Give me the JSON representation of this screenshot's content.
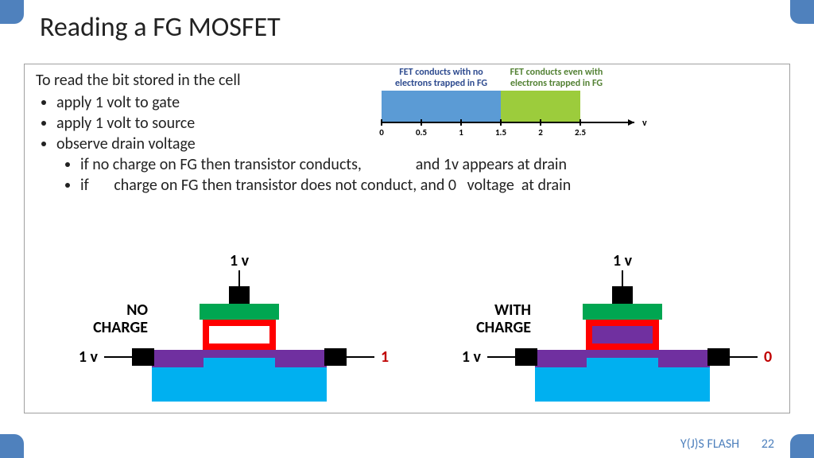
{
  "title": "Reading a FG MOSFET",
  "intro": "To read the bit stored in the cell",
  "bullets": [
    "apply 1 volt to gate",
    "apply 1 volt to source",
    "observe drain voltage"
  ],
  "sub_bullets": [
    "if no charge on FG then transistor conducts,               and 1v appears at drain",
    "if       charge on FG then transistor does not conduct, and 0   voltage  at drain"
  ],
  "footer_left": "Y(J)S  FLASH",
  "footer_page": "22",
  "chart": {
    "ticks": [
      "0",
      "0.5",
      "1",
      "1.5",
      "2",
      "2.5"
    ],
    "axis_label": "v",
    "region1": {
      "label_l1": "FET conducts with no",
      "label_l2": "electrons trapped in FG",
      "color": "#5b9bd5",
      "label_color": "#2e4b8f",
      "x_from": 0,
      "x_to": 1.5
    },
    "region2": {
      "label_l1": "FET conducts even with",
      "label_l2": "electrons trapped in FG",
      "color": "#9ccc3c",
      "label_color": "#548235",
      "x_from": 1.5,
      "x_to": 2.5
    },
    "axis_max": 3.0
  },
  "mosfet": {
    "left": {
      "top_label": "1 v",
      "left_label": "1 v",
      "right_label": "1 v",
      "right_label_color": "#c00000",
      "side_label_l1": "NO",
      "side_label_l2": "CHARGE",
      "fg_fill": "#ffffff"
    },
    "right": {
      "top_label": "1 v",
      "left_label": "1 v",
      "right_label": "0 v",
      "right_label_color": "#c00000",
      "side_label_l1": "WITH",
      "side_label_l2": "CHARGE",
      "fg_fill": "#7030a0"
    },
    "colors": {
      "gate_green": "#00a651",
      "fg_border_red": "#ff0000",
      "purple": "#7030a0",
      "substrate_blue": "#00b0f0",
      "contact_black": "#000000"
    }
  }
}
